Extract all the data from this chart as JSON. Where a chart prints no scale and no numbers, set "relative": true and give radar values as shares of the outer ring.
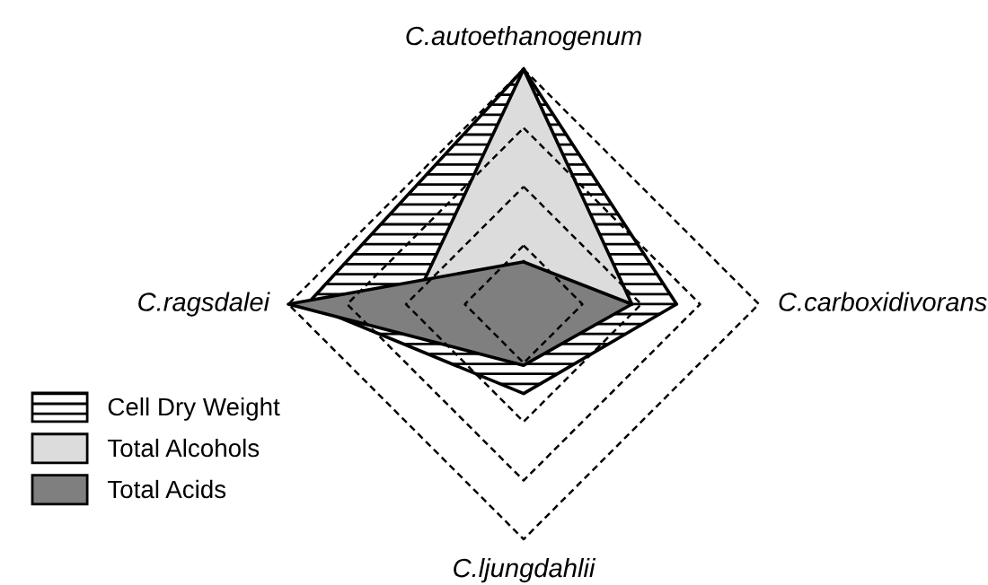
{
  "chart_data": {
    "type": "radar",
    "relative": true,
    "grid": true,
    "legend": "bottom left",
    "categories": [
      "C.autoethanogenum",
      "C.carboxidivorans",
      "C.ljungdahlii",
      "C.ragsdalei"
    ],
    "series": [
      {
        "name": "Cell Dry Weight",
        "color": "#000000",
        "values": [
          1.0,
          0.65,
          0.38,
          0.92
        ]
      },
      {
        "name": "Total Alcohols",
        "color": "#dcdcdc",
        "values": [
          1.0,
          0.46,
          0.12,
          0.47
        ]
      },
      {
        "name": "Total Acids",
        "color": "#7f7f7f",
        "values": [
          0.18,
          0.46,
          0.26,
          1.0
        ]
      }
    ]
  }
}
